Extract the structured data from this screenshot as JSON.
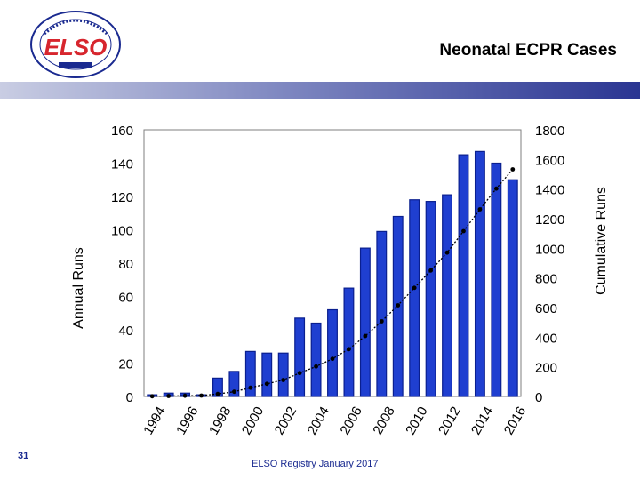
{
  "header": {
    "title": "Neonatal ECPR Cases"
  },
  "logo": {
    "text": "ELSO",
    "ring_text": "EXTRACORPOREAL LIFE SUPPORT ORGANIZATION"
  },
  "footer": {
    "slide_number": "31",
    "source": "ELSO Registry January 2017"
  },
  "colors": {
    "bar": "#1f3fd0",
    "bar_dark": "#0a1f8f",
    "banner_dark": "#2a3592",
    "logo_red": "#d7262e",
    "text_blue": "#1a2a90"
  },
  "chart_data": {
    "type": "bar",
    "years": [
      1994,
      1995,
      1996,
      1997,
      1998,
      1999,
      2000,
      2001,
      2002,
      2003,
      2004,
      2005,
      2006,
      2007,
      2008,
      2009,
      2010,
      2011,
      2012,
      2013,
      2014,
      2015,
      2016
    ],
    "x_tick_labels": [
      "1994",
      "1996",
      "1998",
      "2000",
      "2002",
      "2004",
      "2006",
      "2008",
      "2010",
      "2012",
      "2014",
      "2016"
    ],
    "series": [
      {
        "name": "Annual Runs",
        "axis": "left",
        "type": "bar",
        "values": [
          1,
          2,
          2,
          1,
          11,
          15,
          27,
          26,
          26,
          47,
          44,
          52,
          65,
          89,
          99,
          108,
          118,
          117,
          121,
          145,
          147,
          140,
          130
        ]
      },
      {
        "name": "Cumulative Runs",
        "axis": "right",
        "type": "line",
        "values": [
          1,
          3,
          5,
          6,
          17,
          32,
          59,
          85,
          111,
          158,
          202,
          254,
          319,
          408,
          507,
          615,
          733,
          850,
          971,
          1116,
          1263,
          1403,
          1533
        ]
      }
    ],
    "ylabel": "Annual Runs",
    "ylabel_right": "Cumulative Runs",
    "ylim": [
      0,
      160
    ],
    "ylim_right": [
      0,
      1800
    ],
    "y_ticks": [
      0,
      20,
      40,
      60,
      80,
      100,
      120,
      140,
      160
    ],
    "y_ticks_right": [
      0,
      200,
      400,
      600,
      800,
      1000,
      1200,
      1400,
      1600,
      1800
    ],
    "grid": false,
    "legend": "none"
  }
}
